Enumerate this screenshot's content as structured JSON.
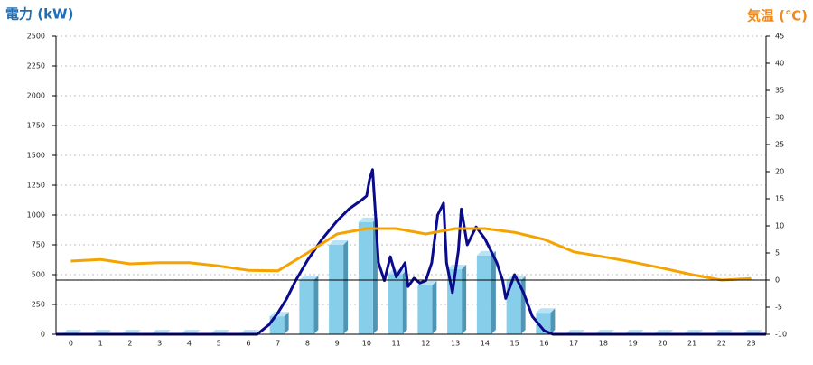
{
  "chart_data": {
    "type": "bar",
    "ylabel": "電力 (kW)",
    "y2label": "気温 (℃)",
    "categories": [
      "0",
      "1",
      "2",
      "3",
      "4",
      "5",
      "6",
      "7",
      "8",
      "9",
      "10",
      "11",
      "12",
      "13",
      "14",
      "15",
      "16",
      "17",
      "18",
      "19",
      "20",
      "21",
      "22",
      "23"
    ],
    "ylim": [
      0,
      2500
    ],
    "yticks": [
      0,
      250,
      500,
      750,
      1000,
      1250,
      1500,
      1750,
      2000,
      2250,
      2500
    ],
    "y2lim": [
      -10,
      45
    ],
    "y2ticks": [
      -10,
      -5,
      0,
      5,
      10,
      15,
      20,
      25,
      30,
      35,
      40,
      45
    ],
    "xlim": [
      -0.5,
      23.5
    ],
    "grid": true,
    "y2_reference_line": 0,
    "series": [
      {
        "type": "bar",
        "color": "#87ceeb",
        "values": [
          0,
          0,
          0,
          0,
          0,
          0,
          0,
          150,
          455,
          750,
          940,
          505,
          410,
          545,
          660,
          450,
          180,
          0,
          0,
          0,
          0,
          0,
          0,
          0
        ]
      },
      {
        "type": "line",
        "color": "#0a0a8c",
        "x": [
          -0.5,
          6.3,
          6.7,
          7,
          7.3,
          7.6,
          8,
          8.5,
          9,
          9.4,
          9.8,
          10,
          10.1,
          10.2,
          10.3,
          10.4,
          10.6,
          10.8,
          11,
          11.3,
          11.4,
          11.6,
          11.8,
          12,
          12.2,
          12.4,
          12.6,
          12.7,
          12.9,
          13.1,
          13.2,
          13.4,
          13.7,
          14,
          14.4,
          14.6,
          14.7,
          15,
          15.3,
          15.6,
          16,
          16.3,
          23.5
        ],
        "values": [
          0,
          0,
          80,
          180,
          300,
          450,
          620,
          800,
          950,
          1050,
          1120,
          1160,
          1300,
          1380,
          1000,
          600,
          450,
          650,
          480,
          600,
          400,
          470,
          430,
          450,
          600,
          1000,
          1100,
          600,
          350,
          700,
          1050,
          750,
          900,
          800,
          600,
          450,
          300,
          500,
          350,
          150,
          30,
          0,
          0
        ]
      },
      {
        "type": "line",
        "axis": "y2",
        "color": "#f5a300",
        "values": [
          3.5,
          3.8,
          3.0,
          3.2,
          3.2,
          2.6,
          1.8,
          1.7,
          5.0,
          8.5,
          9.5,
          9.5,
          8.5,
          9.5,
          9.5,
          8.8,
          7.5,
          5.2,
          4.3,
          3.3,
          2.2,
          1.0,
          0,
          0.3
        ]
      }
    ]
  }
}
